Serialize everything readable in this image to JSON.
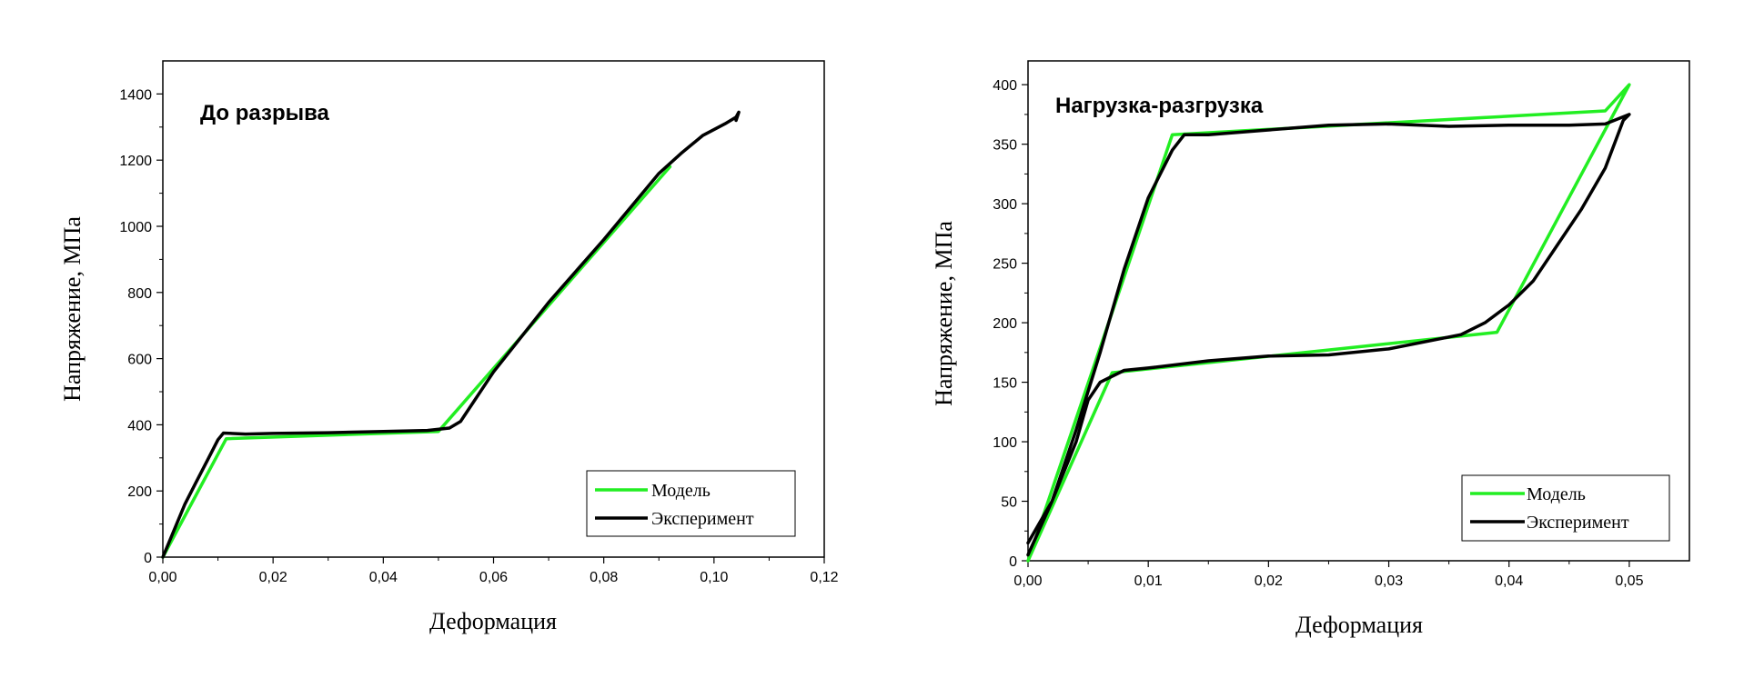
{
  "chart_data": [
    {
      "type": "line",
      "title": "До разрыва",
      "xlabel": "Деформация",
      "ylabel": "Напряжение, МПа",
      "xlim": [
        0,
        0.12
      ],
      "ylim": [
        0,
        1500
      ],
      "xticks": [
        0,
        0.02,
        0.04,
        0.06,
        0.08,
        0.1,
        0.12
      ],
      "xtick_labels": [
        "0,00",
        "0,02",
        "0,04",
        "0,06",
        "0,08",
        "0,10",
        "0,12"
      ],
      "yticks": [
        0,
        200,
        400,
        600,
        800,
        1000,
        1200,
        1400
      ],
      "ytick_labels": [
        "0",
        "200",
        "400",
        "600",
        "800",
        "1000",
        "1200",
        "1400"
      ],
      "grid": false,
      "legend": "bottom-right",
      "series": [
        {
          "name": "Модель",
          "color": "#22ee22",
          "x": [
            0,
            0.0115,
            0.05,
            0.092
          ],
          "y": [
            0,
            358,
            380,
            1180
          ]
        },
        {
          "name": "Эксперимент",
          "color": "#000000",
          "x": [
            0,
            0.002,
            0.004,
            0.006,
            0.008,
            0.01,
            0.011,
            0.015,
            0.02,
            0.03,
            0.04,
            0.048,
            0.052,
            0.054,
            0.06,
            0.07,
            0.08,
            0.09,
            0.094,
            0.098,
            0.102,
            0.104,
            0.1045,
            0.104
          ],
          "y": [
            0,
            80,
            160,
            225,
            290,
            355,
            375,
            372,
            374,
            376,
            380,
            383,
            390,
            410,
            560,
            770,
            960,
            1160,
            1220,
            1275,
            1310,
            1330,
            1345,
            1320
          ]
        }
      ]
    },
    {
      "type": "line",
      "title": "Нагрузка-разгрузка",
      "xlabel": "Деформация",
      "ylabel": "Напряжение, МПа",
      "xlim": [
        0,
        0.055
      ],
      "ylim": [
        0,
        420
      ],
      "xticks": [
        0,
        0.01,
        0.02,
        0.03,
        0.04,
        0.05
      ],
      "xtick_labels": [
        "0,00",
        "0,01",
        "0,02",
        "0,03",
        "0,04",
        "0,05"
      ],
      "yticks": [
        0,
        50,
        100,
        150,
        200,
        250,
        300,
        350,
        400
      ],
      "ytick_labels": [
        "0",
        "50",
        "100",
        "150",
        "200",
        "250",
        "300",
        "350",
        "400"
      ],
      "grid": false,
      "legend": "bottom-right",
      "series": [
        {
          "name": "Модель",
          "color": "#22ee22",
          "x": [
            0,
            0.012,
            0.048,
            0.05,
            0.039,
            0.007,
            0
          ],
          "y": [
            0,
            358,
            378,
            400,
            192,
            158,
            0
          ]
        },
        {
          "name": "Эксперимент",
          "color": "#000000",
          "x": [
            0,
            0.002,
            0.004,
            0.006,
            0.008,
            0.01,
            0.012,
            0.013,
            0.015,
            0.02,
            0.025,
            0.03,
            0.035,
            0.04,
            0.045,
            0.048,
            0.05,
            0.0495,
            0.048,
            0.046,
            0.044,
            0.042,
            0.04,
            0.038,
            0.036,
            0.03,
            0.025,
            0.02,
            0.015,
            0.01,
            0.008,
            0.006,
            0.005,
            0.004,
            0.002,
            0
          ],
          "y": [
            15,
            50,
            110,
            175,
            245,
            305,
            345,
            358,
            358,
            362,
            366,
            367,
            365,
            366,
            366,
            367,
            375,
            370,
            330,
            295,
            265,
            235,
            215,
            200,
            190,
            178,
            173,
            172,
            168,
            162,
            160,
            150,
            135,
            100,
            50,
            5
          ]
        }
      ]
    }
  ]
}
